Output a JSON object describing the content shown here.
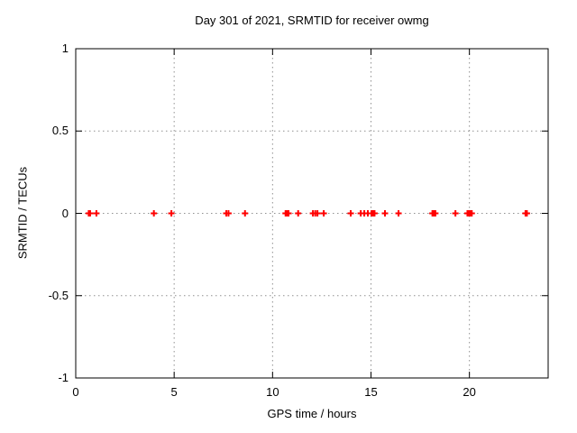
{
  "title": "Day 301 of 2021, SRMTID for receiver owmg",
  "colors": {
    "marker": "#ff0000",
    "grid": "#909090",
    "axis": "#000000",
    "text": "#000000",
    "background": "#ffffff"
  },
  "chart_data": {
    "type": "scatter",
    "title": "Day 301 of 2021, SRMTID for receiver owmg",
    "xlabel": "GPS time / hours",
    "ylabel": "SRMTID / TECUs",
    "xlim": [
      0,
      24
    ],
    "ylim": [
      -1,
      1
    ],
    "xticks": [
      0,
      5,
      10,
      15,
      20
    ],
    "xtick_labels": [
      "0",
      "5",
      "10",
      "15",
      "20"
    ],
    "yticks": [
      1,
      0.5,
      0,
      -0.5,
      -1
    ],
    "ytick_labels": [
      "1",
      "0.5",
      "0",
      "-0.5",
      "-1"
    ],
    "grid": true,
    "legend": "none",
    "marker": "plus",
    "marker_color": "#ff0000",
    "series": [
      {
        "name": "SRMTID",
        "x": [
          0.66,
          0.73,
          1.05,
          3.97,
          4.86,
          7.65,
          7.76,
          8.6,
          10.66,
          10.73,
          10.81,
          11.3,
          12.05,
          12.17,
          12.28,
          12.6,
          13.97,
          14.48,
          14.66,
          14.84,
          15.03,
          15.1,
          15.18,
          15.71,
          16.4,
          18.12,
          18.17,
          18.22,
          18.27,
          19.29,
          19.9,
          19.97,
          20.05,
          20.12,
          22.85,
          22.92
        ],
        "y": [
          0,
          0,
          0,
          0,
          0,
          0,
          0,
          0,
          0,
          0,
          0,
          0,
          0,
          0,
          0,
          0,
          0,
          0,
          0,
          0,
          0,
          0,
          0,
          0,
          0,
          0,
          0,
          0,
          0,
          0,
          0,
          0,
          0,
          0,
          0,
          0
        ]
      }
    ]
  }
}
